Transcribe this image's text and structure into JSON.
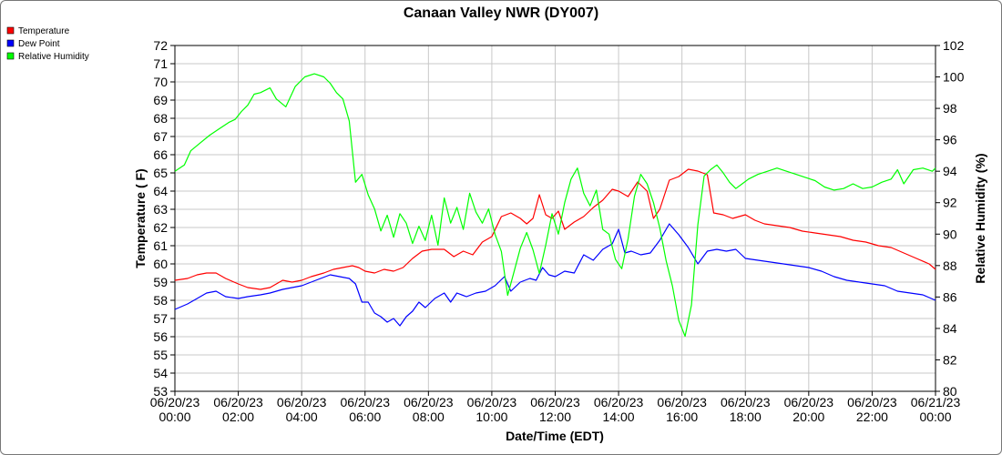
{
  "chart_data": {
    "type": "line",
    "title": "Canaan Valley NWR (DY007)",
    "xlabel": "Date/Time (EDT)",
    "ylabel": "Temperature ( F)",
    "y2label": "Relative Humidity (%)",
    "ylim": [
      53,
      72
    ],
    "y2lim": [
      80,
      102
    ],
    "yticks": [
      53,
      54,
      55,
      56,
      57,
      58,
      59,
      60,
      61,
      62,
      63,
      64,
      65,
      66,
      67,
      68,
      69,
      70,
      71,
      72
    ],
    "y2ticks": [
      80,
      82,
      84,
      86,
      88,
      90,
      92,
      94,
      96,
      98,
      100,
      102
    ],
    "xlim_hours": [
      0,
      24
    ],
    "xticks": [
      {
        "h": 0,
        "date": "06/20/23",
        "time": "00:00"
      },
      {
        "h": 2,
        "date": "06/20/23",
        "time": "02:00"
      },
      {
        "h": 4,
        "date": "06/20/23",
        "time": "04:00"
      },
      {
        "h": 6,
        "date": "06/20/23",
        "time": "06:00"
      },
      {
        "h": 8,
        "date": "06/20/23",
        "time": "08:00"
      },
      {
        "h": 10,
        "date": "06/20/23",
        "time": "10:00"
      },
      {
        "h": 12,
        "date": "06/20/23",
        "time": "12:00"
      },
      {
        "h": 14,
        "date": "06/20/23",
        "time": "14:00"
      },
      {
        "h": 16,
        "date": "06/20/23",
        "time": "16:00"
      },
      {
        "h": 18,
        "date": "06/20/23",
        "time": "18:00"
      },
      {
        "h": 20,
        "date": "06/20/23",
        "time": "20:00"
      },
      {
        "h": 22,
        "date": "06/20/23",
        "time": "22:00"
      },
      {
        "h": 24,
        "date": "06/21/23",
        "time": "00:00"
      }
    ],
    "grid": true,
    "legend_position": "top-left",
    "series": [
      {
        "name": "Temperature",
        "color": "#ff0000",
        "axis": "left",
        "points": [
          [
            0,
            59.1
          ],
          [
            0.4,
            59.2
          ],
          [
            0.7,
            59.4
          ],
          [
            1,
            59.5
          ],
          [
            1.3,
            59.5
          ],
          [
            1.6,
            59.2
          ],
          [
            2,
            58.9
          ],
          [
            2.3,
            58.7
          ],
          [
            2.7,
            58.6
          ],
          [
            3,
            58.7
          ],
          [
            3.4,
            59.1
          ],
          [
            3.7,
            59.0
          ],
          [
            4,
            59.1
          ],
          [
            4.3,
            59.3
          ],
          [
            4.7,
            59.5
          ],
          [
            5,
            59.7
          ],
          [
            5.3,
            59.8
          ],
          [
            5.6,
            59.9
          ],
          [
            5.8,
            59.8
          ],
          [
            6,
            59.6
          ],
          [
            6.3,
            59.5
          ],
          [
            6.6,
            59.7
          ],
          [
            6.9,
            59.6
          ],
          [
            7.2,
            59.8
          ],
          [
            7.5,
            60.3
          ],
          [
            7.8,
            60.7
          ],
          [
            8.1,
            60.8
          ],
          [
            8.5,
            60.8
          ],
          [
            8.8,
            60.4
          ],
          [
            9.1,
            60.7
          ],
          [
            9.4,
            60.5
          ],
          [
            9.7,
            61.2
          ],
          [
            10,
            61.5
          ],
          [
            10.3,
            62.6
          ],
          [
            10.6,
            62.8
          ],
          [
            10.9,
            62.5
          ],
          [
            11.1,
            62.2
          ],
          [
            11.3,
            62.5
          ],
          [
            11.5,
            63.8
          ],
          [
            11.7,
            62.7
          ],
          [
            11.9,
            62.5
          ],
          [
            12.1,
            62.9
          ],
          [
            12.3,
            61.9
          ],
          [
            12.6,
            62.3
          ],
          [
            12.9,
            62.6
          ],
          [
            13.2,
            63.1
          ],
          [
            13.5,
            63.5
          ],
          [
            13.8,
            64.1
          ],
          [
            14,
            64.0
          ],
          [
            14.3,
            63.7
          ],
          [
            14.6,
            64.5
          ],
          [
            14.9,
            64.0
          ],
          [
            15.1,
            62.5
          ],
          [
            15.3,
            63.0
          ],
          [
            15.6,
            64.6
          ],
          [
            15.9,
            64.8
          ],
          [
            16.2,
            65.2
          ],
          [
            16.5,
            65.1
          ],
          [
            16.8,
            64.9
          ],
          [
            17,
            62.8
          ],
          [
            17.3,
            62.7
          ],
          [
            17.6,
            62.5
          ],
          [
            18,
            62.7
          ],
          [
            18.3,
            62.4
          ],
          [
            18.6,
            62.2
          ],
          [
            19,
            62.1
          ],
          [
            19.4,
            62.0
          ],
          [
            19.8,
            61.8
          ],
          [
            20.2,
            61.7
          ],
          [
            20.6,
            61.6
          ],
          [
            21,
            61.5
          ],
          [
            21.4,
            61.3
          ],
          [
            21.8,
            61.2
          ],
          [
            22.2,
            61.0
          ],
          [
            22.6,
            60.9
          ],
          [
            23,
            60.6
          ],
          [
            23.4,
            60.3
          ],
          [
            23.8,
            60.0
          ],
          [
            24,
            59.7
          ]
        ]
      },
      {
        "name": "Dew Point",
        "color": "#0000ff",
        "axis": "left",
        "points": [
          [
            0,
            57.5
          ],
          [
            0.4,
            57.8
          ],
          [
            0.7,
            58.1
          ],
          [
            1,
            58.4
          ],
          [
            1.3,
            58.5
          ],
          [
            1.6,
            58.2
          ],
          [
            2,
            58.1
          ],
          [
            2.3,
            58.2
          ],
          [
            2.7,
            58.3
          ],
          [
            3,
            58.4
          ],
          [
            3.4,
            58.6
          ],
          [
            3.7,
            58.7
          ],
          [
            4,
            58.8
          ],
          [
            4.3,
            59.0
          ],
          [
            4.6,
            59.2
          ],
          [
            4.9,
            59.4
          ],
          [
            5.2,
            59.3
          ],
          [
            5.5,
            59.2
          ],
          [
            5.7,
            58.9
          ],
          [
            5.9,
            57.9
          ],
          [
            6.1,
            57.9
          ],
          [
            6.3,
            57.3
          ],
          [
            6.5,
            57.1
          ],
          [
            6.7,
            56.8
          ],
          [
            6.9,
            57.0
          ],
          [
            7.1,
            56.6
          ],
          [
            7.3,
            57.1
          ],
          [
            7.5,
            57.4
          ],
          [
            7.7,
            57.9
          ],
          [
            7.9,
            57.6
          ],
          [
            8.2,
            58.1
          ],
          [
            8.5,
            58.4
          ],
          [
            8.7,
            57.9
          ],
          [
            8.9,
            58.4
          ],
          [
            9.2,
            58.2
          ],
          [
            9.5,
            58.4
          ],
          [
            9.8,
            58.5
          ],
          [
            10.1,
            58.8
          ],
          [
            10.4,
            59.3
          ],
          [
            10.6,
            58.5
          ],
          [
            10.9,
            59.0
          ],
          [
            11.2,
            59.2
          ],
          [
            11.4,
            59.1
          ],
          [
            11.6,
            59.8
          ],
          [
            11.8,
            59.4
          ],
          [
            12,
            59.3
          ],
          [
            12.3,
            59.6
          ],
          [
            12.6,
            59.5
          ],
          [
            12.9,
            60.5
          ],
          [
            13.2,
            60.2
          ],
          [
            13.5,
            60.8
          ],
          [
            13.8,
            61.1
          ],
          [
            14,
            61.9
          ],
          [
            14.2,
            60.6
          ],
          [
            14.4,
            60.7
          ],
          [
            14.7,
            60.5
          ],
          [
            15,
            60.6
          ],
          [
            15.3,
            61.3
          ],
          [
            15.6,
            62.2
          ],
          [
            15.9,
            61.6
          ],
          [
            16.2,
            60.9
          ],
          [
            16.5,
            60.0
          ],
          [
            16.8,
            60.7
          ],
          [
            17.1,
            60.8
          ],
          [
            17.4,
            60.7
          ],
          [
            17.7,
            60.8
          ],
          [
            18,
            60.3
          ],
          [
            18.4,
            60.2
          ],
          [
            18.8,
            60.1
          ],
          [
            19.2,
            60.0
          ],
          [
            19.6,
            59.9
          ],
          [
            20,
            59.8
          ],
          [
            20.4,
            59.6
          ],
          [
            20.8,
            59.3
          ],
          [
            21.2,
            59.1
          ],
          [
            21.6,
            59.0
          ],
          [
            22,
            58.9
          ],
          [
            22.4,
            58.8
          ],
          [
            22.8,
            58.5
          ],
          [
            23.2,
            58.4
          ],
          [
            23.6,
            58.3
          ],
          [
            24,
            58.0
          ]
        ]
      },
      {
        "name": "Relative Humidity",
        "color": "#00ff00",
        "axis": "right",
        "points": [
          [
            0,
            94.0
          ],
          [
            0.3,
            94.4
          ],
          [
            0.5,
            95.3
          ],
          [
            0.8,
            95.8
          ],
          [
            1.1,
            96.3
          ],
          [
            1.4,
            96.7
          ],
          [
            1.7,
            97.1
          ],
          [
            1.9,
            97.3
          ],
          [
            2.1,
            97.8
          ],
          [
            2.3,
            98.2
          ],
          [
            2.5,
            98.9
          ],
          [
            2.7,
            99.0
          ],
          [
            3,
            99.3
          ],
          [
            3.2,
            98.6
          ],
          [
            3.5,
            98.1
          ],
          [
            3.8,
            99.4
          ],
          [
            4.1,
            100.0
          ],
          [
            4.4,
            100.2
          ],
          [
            4.7,
            100.0
          ],
          [
            4.9,
            99.6
          ],
          [
            5.1,
            99.0
          ],
          [
            5.3,
            98.6
          ],
          [
            5.5,
            97.2
          ],
          [
            5.7,
            93.3
          ],
          [
            5.9,
            93.8
          ],
          [
            6.1,
            92.5
          ],
          [
            6.3,
            91.6
          ],
          [
            6.5,
            90.2
          ],
          [
            6.7,
            91.2
          ],
          [
            6.9,
            89.8
          ],
          [
            7.1,
            91.3
          ],
          [
            7.3,
            90.7
          ],
          [
            7.5,
            89.4
          ],
          [
            7.7,
            90.5
          ],
          [
            7.9,
            89.6
          ],
          [
            8.1,
            91.2
          ],
          [
            8.3,
            89.3
          ],
          [
            8.5,
            92.3
          ],
          [
            8.7,
            90.7
          ],
          [
            8.9,
            91.7
          ],
          [
            9.1,
            90.3
          ],
          [
            9.3,
            92.6
          ],
          [
            9.5,
            91.4
          ],
          [
            9.7,
            90.7
          ],
          [
            9.9,
            91.6
          ],
          [
            10.1,
            90.0
          ],
          [
            10.3,
            88.9
          ],
          [
            10.5,
            86.1
          ],
          [
            10.7,
            87.6
          ],
          [
            10.9,
            89.1
          ],
          [
            11.1,
            90.1
          ],
          [
            11.3,
            89.0
          ],
          [
            11.5,
            87.5
          ],
          [
            11.7,
            89.3
          ],
          [
            11.9,
            91.3
          ],
          [
            12.1,
            90.0
          ],
          [
            12.3,
            92.0
          ],
          [
            12.5,
            93.5
          ],
          [
            12.7,
            94.2
          ],
          [
            12.9,
            92.6
          ],
          [
            13.1,
            91.8
          ],
          [
            13.3,
            92.8
          ],
          [
            13.5,
            90.3
          ],
          [
            13.7,
            90.0
          ],
          [
            13.9,
            88.4
          ],
          [
            14.1,
            87.8
          ],
          [
            14.3,
            89.7
          ],
          [
            14.5,
            92.4
          ],
          [
            14.7,
            93.8
          ],
          [
            14.9,
            93.2
          ],
          [
            15.1,
            92.0
          ],
          [
            15.3,
            90.4
          ],
          [
            15.5,
            88.3
          ],
          [
            15.7,
            86.7
          ],
          [
            15.9,
            84.5
          ],
          [
            16.1,
            83.5
          ],
          [
            16.3,
            85.5
          ],
          [
            16.5,
            90.6
          ],
          [
            16.7,
            93.7
          ],
          [
            16.9,
            94.1
          ],
          [
            17.1,
            94.4
          ],
          [
            17.3,
            93.9
          ],
          [
            17.5,
            93.3
          ],
          [
            17.7,
            92.9
          ],
          [
            17.9,
            93.2
          ],
          [
            18.1,
            93.5
          ],
          [
            18.4,
            93.8
          ],
          [
            18.7,
            94.0
          ],
          [
            19,
            94.2
          ],
          [
            19.3,
            94.0
          ],
          [
            19.6,
            93.8
          ],
          [
            19.9,
            93.6
          ],
          [
            20.2,
            93.4
          ],
          [
            20.5,
            93.0
          ],
          [
            20.8,
            92.8
          ],
          [
            21.1,
            92.9
          ],
          [
            21.4,
            93.2
          ],
          [
            21.7,
            92.9
          ],
          [
            22,
            93.0
          ],
          [
            22.3,
            93.3
          ],
          [
            22.6,
            93.5
          ],
          [
            22.8,
            94.1
          ],
          [
            23,
            93.2
          ],
          [
            23.3,
            94.1
          ],
          [
            23.6,
            94.2
          ],
          [
            23.9,
            94.0
          ],
          [
            24,
            94.2
          ]
        ]
      }
    ]
  }
}
